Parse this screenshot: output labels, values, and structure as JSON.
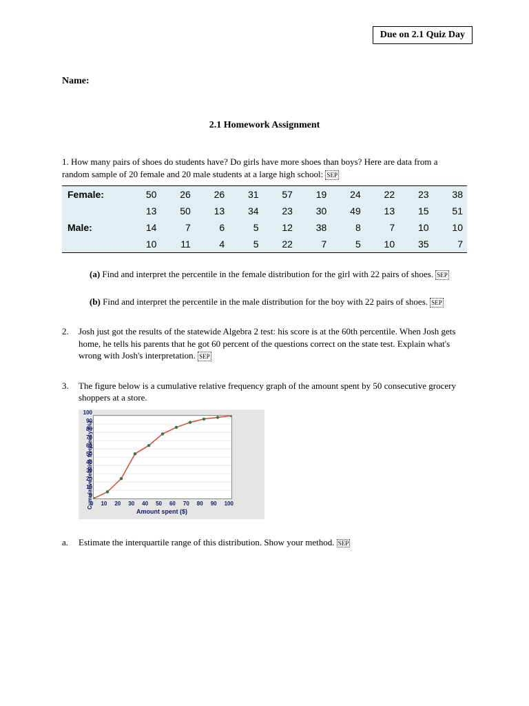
{
  "header": {
    "due": "Due on 2.1 Quiz Day",
    "name_label": "Name:",
    "title": "2.1 Homework Assignment"
  },
  "q1": {
    "intro": "1. How many pairs of shoes do students have? Do girls have more shoes than boys? Here are data from a random sample of 20 female and 20 male students at a large high school:",
    "sep": "SEP",
    "female_label": "Female:",
    "male_label": "Male:",
    "female_row1": [
      50,
      26,
      26,
      31,
      57,
      19,
      24,
      22,
      23,
      38
    ],
    "female_row2": [
      13,
      50,
      13,
      34,
      23,
      30,
      49,
      13,
      15,
      51
    ],
    "male_row1": [
      14,
      7,
      6,
      5,
      12,
      38,
      8,
      7,
      10,
      10
    ],
    "male_row2": [
      10,
      11,
      4,
      5,
      22,
      7,
      5,
      10,
      35,
      7
    ],
    "part_a_label": "(a)",
    "part_a": "Find and interpret the percentile in the female distribution for the girl with 22 pairs of shoes.",
    "part_b_label": "(b)",
    "part_b": "Find and interpret the percentile in the male distribution for the boy with 22 pairs of shoes."
  },
  "q2": {
    "num": "2.",
    "text": "Josh just got the results of the statewide Algebra 2 test: his score is at the 60th percentile. When Josh gets home, he tells his parents that he got 60 percent of the questions correct on the state test. Explain what's wrong with Josh's interpretation."
  },
  "q3": {
    "num": "3.",
    "text": "The figure below is a cumulative relative frequency graph of the amount spent by 50 consecutive grocery shoppers at a store.",
    "chart": {
      "ylabel": "Cumulative relative frequency (%)",
      "xlabel": "Amount spent ($)",
      "xticks": [
        "0",
        "10",
        "20",
        "30",
        "40",
        "50",
        "60",
        "70",
        "80",
        "90",
        "100"
      ],
      "yticks": [
        "0",
        "10",
        "20",
        "30",
        "40",
        "50",
        "60",
        "70",
        "80",
        "90",
        "100"
      ],
      "points": [
        {
          "x": 0,
          "y": 0
        },
        {
          "x": 10,
          "y": 8
        },
        {
          "x": 20,
          "y": 24
        },
        {
          "x": 30,
          "y": 54
        },
        {
          "x": 40,
          "y": 64
        },
        {
          "x": 50,
          "y": 78
        },
        {
          "x": 60,
          "y": 86
        },
        {
          "x": 70,
          "y": 92
        },
        {
          "x": 80,
          "y": 96
        },
        {
          "x": 90,
          "y": 98
        },
        {
          "x": 100,
          "y": 100
        }
      ],
      "line_color": "#d84a2f",
      "marker_color": "#2a7a4a",
      "grid_color": "#d0d0d0",
      "bg_color": "#ffffff",
      "label_color": "#0b1a6a"
    },
    "part_a_num": "a.",
    "part_a": "Estimate the interquartile range of this distribution. Show your method."
  }
}
